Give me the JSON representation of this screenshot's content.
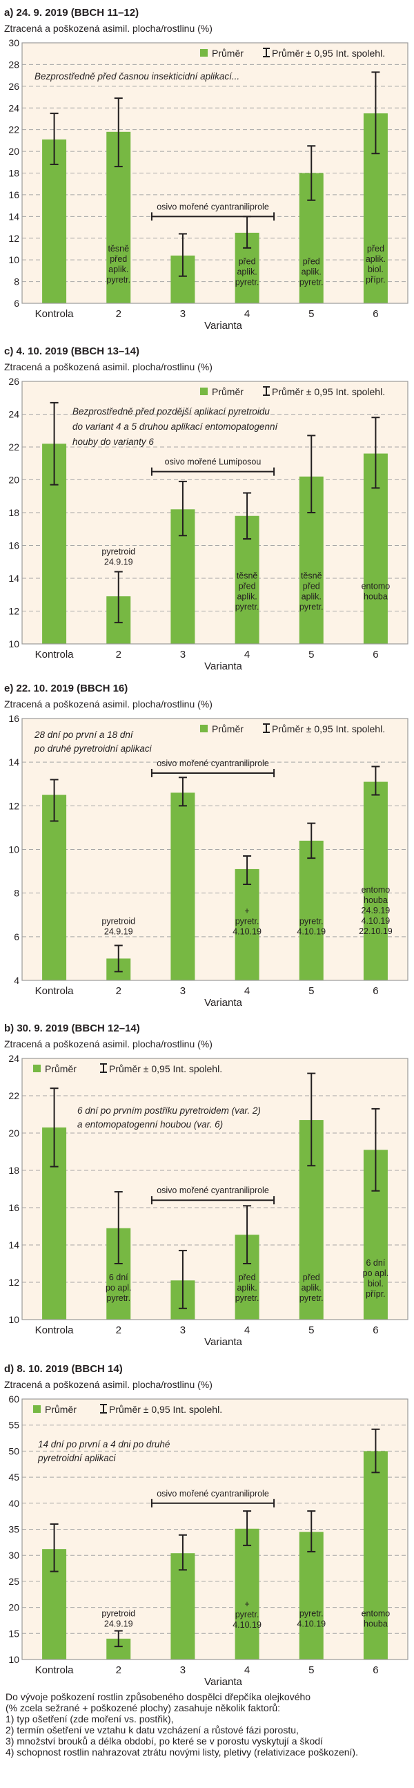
{
  "colors": {
    "bar": "#77b843",
    "plot_bg": "#fdf3e7",
    "grid": "#a6a6a6",
    "border": "#9a9a9a",
    "error_bar": "#231f20"
  },
  "legend": {
    "mean": "Průměr",
    "ci": "Průměr ± 0,95 Int. spolehl."
  },
  "chart_data": [
    {
      "type": "bar",
      "title": "a) 24. 9. 2019 (BBCH 11–12)",
      "ylabel": "Ztracená a poškozená asimil. plocha/rostlinu (%)",
      "xlabel": "Varianta",
      "categories": [
        "Kontrola",
        "2",
        "3",
        "4",
        "5",
        "6"
      ],
      "values": [
        21.1,
        21.8,
        10.4,
        12.5,
        18.0,
        23.5
      ],
      "ci_low": [
        18.8,
        18.6,
        8.5,
        11.1,
        15.5,
        19.8
      ],
      "ci_high": [
        23.5,
        24.9,
        12.4,
        14.0,
        20.5,
        27.3
      ],
      "ylim": [
        6,
        30
      ],
      "ytick_step": 2,
      "grid": true,
      "legend_placement": "top-right",
      "note": [
        "Bezprostředně před časnou insekticidní aplikací..."
      ],
      "bracket": {
        "label": "osivo mořené cyantraniliprole",
        "from": "3",
        "to": "4"
      },
      "bar_labels": [
        [],
        [
          "těsně",
          "před",
          "aplik.",
          "pyretr."
        ],
        [],
        [
          "před",
          "aplik.",
          "pyretr."
        ],
        [
          "před",
          "aplik.",
          "pyretr."
        ],
        [
          "před",
          "aplik.",
          "biol.",
          "přípr."
        ]
      ]
    },
    {
      "type": "bar",
      "title": "c) 4. 10. 2019 (BBCH 13–14)",
      "ylabel": "Ztracená a poškozená asimil. plocha/rostlinu (%)",
      "xlabel": "Varianta",
      "categories": [
        "Kontrola",
        "2",
        "3",
        "4",
        "5",
        "6"
      ],
      "values": [
        22.2,
        12.9,
        18.2,
        17.8,
        20.2,
        21.6
      ],
      "ci_low": [
        19.7,
        11.3,
        16.6,
        16.4,
        18.0,
        19.5
      ],
      "ci_high": [
        24.7,
        14.4,
        19.9,
        19.2,
        22.7,
        23.8
      ],
      "ylim": [
        10,
        26
      ],
      "ytick_step": 2,
      "grid": true,
      "legend_placement": "top-right",
      "note": [
        "Bezprostředně před pozdější aplikací pyretroidu",
        "do variant 4 a 5 druhou aplikací entomopatogenní",
        "houby do varianty 6"
      ],
      "bracket": {
        "label": "osivo mořené Lumiposou",
        "from": "3",
        "to": "4"
      },
      "bar_labels": [
        [],
        [
          "pyretroid",
          "24.9.19"
        ],
        [],
        [
          "těsně",
          "před",
          "aplik.",
          "pyretr."
        ],
        [
          "těsně",
          "před",
          "aplik.",
          "pyretr."
        ],
        [
          "entomo",
          "houba"
        ]
      ]
    },
    {
      "type": "bar",
      "title": "e) 22. 10. 2019 (BBCH 16)",
      "ylabel": "Ztracená a poškozená asimil. plocha/rostlinu (%)",
      "xlabel": "Varianta",
      "categories": [
        "Kontrola",
        "2",
        "3",
        "4",
        "5",
        "6"
      ],
      "values": [
        12.5,
        5.0,
        12.6,
        9.1,
        10.4,
        13.1
      ],
      "ci_low": [
        11.3,
        4.4,
        12.0,
        8.4,
        9.6,
        12.5
      ],
      "ci_high": [
        13.2,
        5.6,
        13.3,
        9.7,
        11.2,
        13.8
      ],
      "ylim": [
        4,
        16
      ],
      "ytick_step": 2,
      "grid": true,
      "legend_placement": "top-right",
      "note": [
        "28 dní po první a 18 dní",
        "po druhé pyretroidní aplikaci"
      ],
      "bracket": {
        "label": "osivo mořené cyantraniliprole",
        "from": "3",
        "to": "4"
      },
      "bar_labels": [
        [],
        [
          "pyretroid",
          "24.9.19"
        ],
        [],
        [
          "+",
          "pyretr.",
          "4.10.19"
        ],
        [
          "pyretr.",
          "4.10.19"
        ],
        [
          "entomo",
          "houba",
          "24.9.19",
          "4.10.19",
          "22.10.19"
        ]
      ]
    },
    {
      "type": "bar",
      "title": "b) 30. 9. 2019 (BBCH 12–14)",
      "ylabel": "Ztracená a poškozená asimil. plocha/rostlinu (%)",
      "xlabel": "Varianta",
      "categories": [
        "Kontrola",
        "2",
        "3",
        "4",
        "5",
        "6"
      ],
      "values": [
        20.3,
        14.9,
        12.1,
        14.55,
        20.7,
        19.1
      ],
      "ci_low": [
        18.2,
        13.0,
        10.6,
        13.0,
        18.25,
        16.9
      ],
      "ci_high": [
        22.4,
        16.85,
        13.7,
        16.1,
        23.2,
        21.3
      ],
      "ylim": [
        10,
        24
      ],
      "ytick_step": 2,
      "grid": true,
      "legend_placement": "top-left",
      "note": [
        "6 dní po prvním postřiku pyretroidem (var. 2)",
        "a entomopatogenní houbou (var. 6)"
      ],
      "bracket": {
        "label": "osivo mořené cyantraniliprole",
        "from": "3",
        "to": "4"
      },
      "bar_labels": [
        [],
        [
          "6 dní",
          "po apl.",
          "pyretr."
        ],
        [],
        [
          "před",
          "aplik.",
          "pyretr."
        ],
        [
          "před",
          "aplik.",
          "pyretr."
        ],
        [
          "6 dní",
          "po apl.",
          "biol.",
          "přípr."
        ]
      ]
    },
    {
      "type": "bar",
      "title": "d) 8. 10. 2019 (BBCH 14)",
      "ylabel": "Ztracená a poškozená asimil. plocha/rostlinu (%)",
      "xlabel": "Varianta",
      "categories": [
        "Kontrola",
        "2",
        "3",
        "4",
        "5",
        "6"
      ],
      "values": [
        31.2,
        14.0,
        30.4,
        35.1,
        34.5,
        50.0
      ],
      "ci_low": [
        26.9,
        12.5,
        27.2,
        31.9,
        30.7,
        45.9
      ],
      "ci_high": [
        36.0,
        15.5,
        33.9,
        38.5,
        38.5,
        54.2
      ],
      "ylim": [
        10,
        60
      ],
      "ytick_step": 5,
      "grid": true,
      "legend_placement": "top-left",
      "note": [
        "14 dní po první a 4 dni po druhé",
        "pyretroidní aplikaci"
      ],
      "bracket": {
        "label": "osivo mořené cyantraniliprole",
        "from": "3",
        "to": "4"
      },
      "bar_labels": [
        [],
        [
          "pyretroid",
          "24.9.19"
        ],
        [],
        [
          "+",
          "pyretr.",
          "4.10.19"
        ],
        [
          "pyretr.",
          "4.10.19"
        ],
        [
          "entomo",
          "houba"
        ]
      ]
    }
  ],
  "footer": {
    "lines": [
      "Do vývoje poškození rostlin způsobeného dospělci dřepčíka olejkového",
      "(% zcela sežrané + poškozené plochy) zasahuje několik faktorů:",
      "1) typ ošetření (zde moření vs. postřik),",
      "2) termín ošetření ve vztahu k datu vzcházení a růstové fázi porostu,",
      "3) množství brouků a délka období, po které se v porostu vyskytují a škodí",
      "4) schopnost rostlin nahrazovat ztrátu novými listy, pletivy (relativizace poškození)."
    ]
  }
}
